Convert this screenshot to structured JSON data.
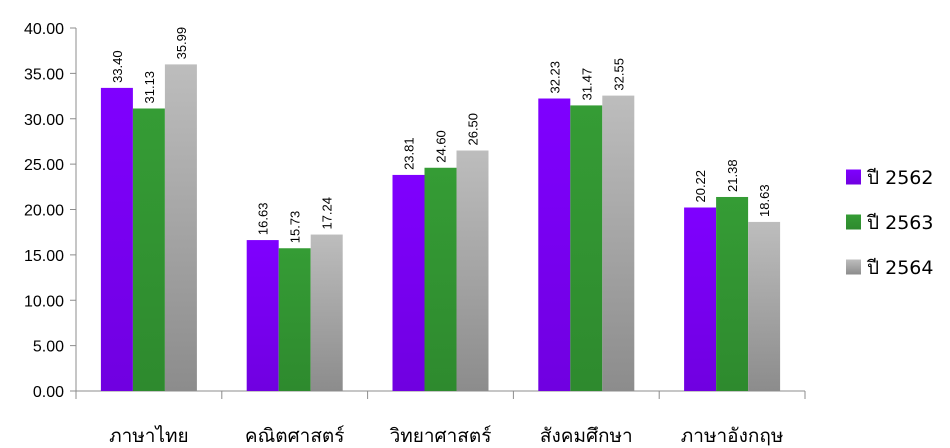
{
  "chart_data": {
    "type": "bar",
    "title": "",
    "xlabel": "",
    "ylabel": "",
    "categories": [
      "ภาษาไทย",
      "คณิตศาสตร์",
      "วิทยาศาสตร์",
      "สังคมศึกษา",
      "ภาษาอังกฤษ"
    ],
    "series": [
      {
        "name": "ปี 2562",
        "color": "#7F00FF",
        "values": [
          33.4,
          16.63,
          23.81,
          32.23,
          20.22
        ],
        "labels": [
          "33.40",
          "16.63",
          "23.81",
          "32.23",
          "20.22"
        ]
      },
      {
        "name": "ปี 2563",
        "color": "#339933",
        "values": [
          31.13,
          15.73,
          24.6,
          31.47,
          21.38
        ],
        "labels": [
          "31.13",
          "15.73",
          "24.60",
          "31.47",
          "21.38"
        ]
      },
      {
        "name": "ปี 2564",
        "color": "#A6A6A6",
        "values": [
          35.99,
          17.24,
          26.5,
          32.55,
          18.63
        ],
        "labels": [
          "35.99",
          "17.24",
          "26.50",
          "32.55",
          "18.63"
        ]
      }
    ],
    "ylim": [
      0,
      40
    ],
    "yticks": [
      "0.00",
      "5.00",
      "10.00",
      "15.00",
      "20.00",
      "25.00",
      "30.00",
      "35.00",
      "40.00"
    ],
    "ytick_values": [
      0,
      5,
      10,
      15,
      20,
      25,
      30,
      35,
      40
    ],
    "grid": false,
    "legend": "right",
    "data_labels_rotated": true
  }
}
